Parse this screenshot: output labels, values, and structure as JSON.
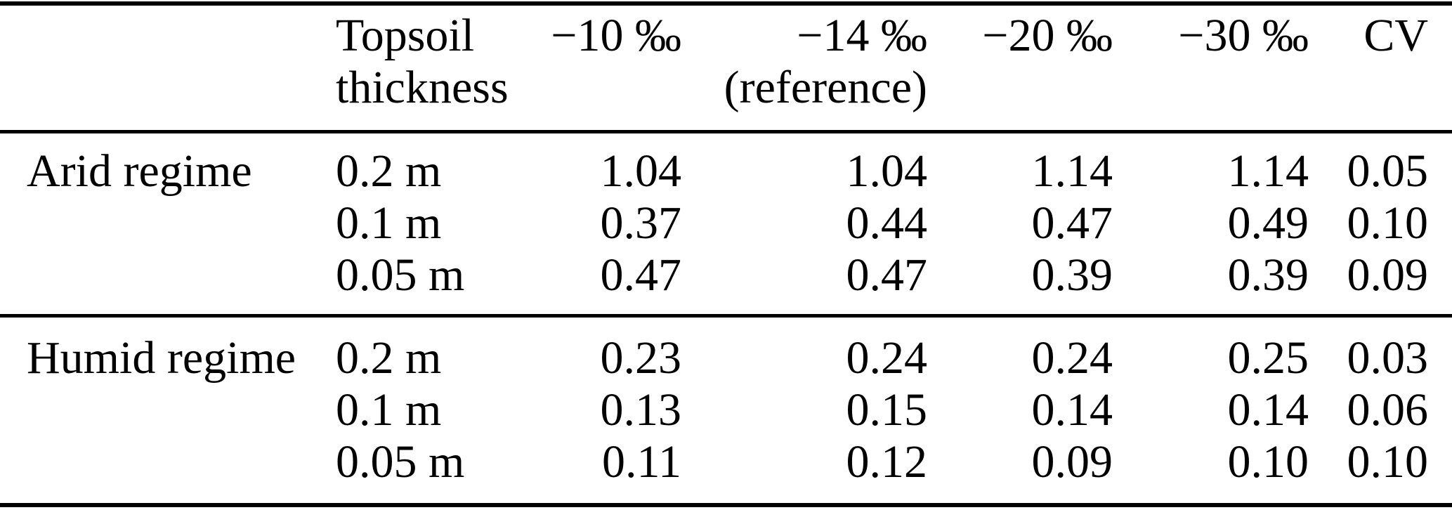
{
  "table": {
    "header": {
      "topsoil": {
        "line1": "Topsoil",
        "line2": "thickness"
      },
      "cols": [
        {
          "line1": "−10 ‰",
          "line2": ""
        },
        {
          "line1": "−14 ‰",
          "line2": "(reference)"
        },
        {
          "line1": "−20 ‰",
          "line2": ""
        },
        {
          "line1": "−30 ‰",
          "line2": ""
        },
        {
          "line1": "CV",
          "line2": ""
        }
      ]
    },
    "sections": [
      {
        "label": "Arid regime",
        "rows": [
          {
            "thickness": "0.2 m",
            "values": [
              "1.04",
              "1.04",
              "1.14",
              "1.14",
              "0.05"
            ]
          },
          {
            "thickness": "0.1 m",
            "values": [
              "0.37",
              "0.44",
              "0.47",
              "0.49",
              "0.10"
            ]
          },
          {
            "thickness": "0.05 m",
            "values": [
              "0.47",
              "0.47",
              "0.39",
              "0.39",
              "0.09"
            ]
          }
        ]
      },
      {
        "label": "Humid regime",
        "rows": [
          {
            "thickness": "0.2 m",
            "values": [
              "0.23",
              "0.24",
              "0.24",
              "0.25",
              "0.03"
            ]
          },
          {
            "thickness": "0.1 m",
            "values": [
              "0.13",
              "0.15",
              "0.14",
              "0.14",
              "0.06"
            ]
          },
          {
            "thickness": "0.05 m",
            "values": [
              "0.11",
              "0.12",
              "0.09",
              "0.10",
              "0.10"
            ]
          }
        ]
      }
    ],
    "colors": {
      "text": "#000000",
      "background": "#ffffff",
      "rule": "#000000"
    }
  }
}
